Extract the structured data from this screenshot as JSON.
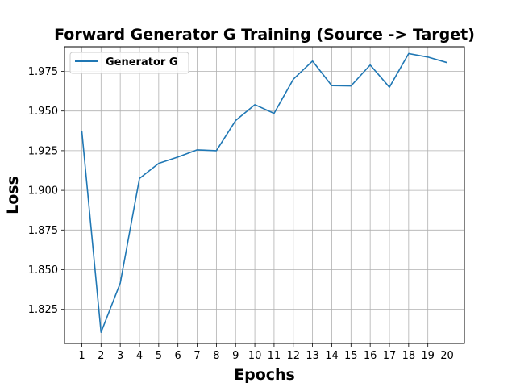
{
  "chart_data": {
    "type": "line",
    "title": "Forward Generator G Training (Source -> Target)",
    "xlabel": "Epochs",
    "ylabel": "Loss",
    "x": [
      1,
      2,
      3,
      4,
      5,
      6,
      7,
      8,
      9,
      10,
      11,
      12,
      13,
      14,
      15,
      16,
      17,
      18,
      19,
      20
    ],
    "xlim": [
      0.1,
      20.9
    ],
    "ylim": [
      1.8035,
      1.9905
    ],
    "y_ticks": [
      "1.825",
      "1.850",
      "1.875",
      "1.900",
      "1.925",
      "1.950",
      "1.975"
    ],
    "grid": true,
    "legend_position": "upper-left",
    "series": [
      {
        "name": "Generator G",
        "color": "#1f77b4",
        "values": [
          1.9375,
          1.8105,
          1.8415,
          1.9075,
          1.917,
          1.921,
          1.9255,
          1.925,
          1.944,
          1.954,
          1.9485,
          1.97,
          1.9815,
          1.966,
          1.9658,
          1.979,
          1.965,
          1.9862,
          1.984,
          1.9805
        ]
      }
    ]
  }
}
